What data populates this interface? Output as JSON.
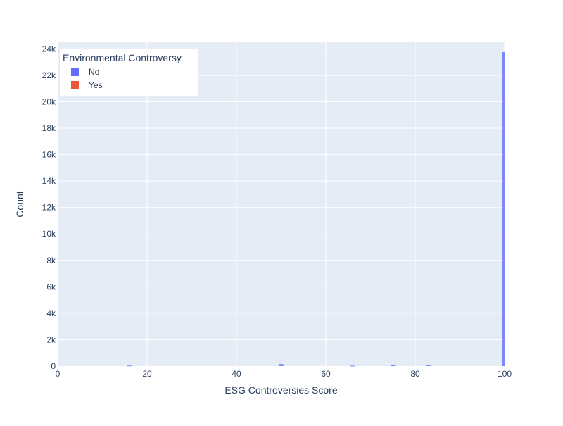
{
  "chart_data": {
    "type": "bar",
    "xlabel": "ESG Controversies Score",
    "ylabel": "Count",
    "xlim": [
      0,
      100
    ],
    "ylim": [
      0,
      24500
    ],
    "x_ticks": [
      {
        "value": 0,
        "label": "0"
      },
      {
        "value": 20,
        "label": "20"
      },
      {
        "value": 40,
        "label": "40"
      },
      {
        "value": 60,
        "label": "60"
      },
      {
        "value": 80,
        "label": "80"
      },
      {
        "value": 100,
        "label": "100"
      }
    ],
    "y_ticks": [
      {
        "value": 0,
        "label": "0"
      },
      {
        "value": 2000,
        "label": "2k"
      },
      {
        "value": 4000,
        "label": "4k"
      },
      {
        "value": 6000,
        "label": "6k"
      },
      {
        "value": 8000,
        "label": "8k"
      },
      {
        "value": 10000,
        "label": "10k"
      },
      {
        "value": 12000,
        "label": "12k"
      },
      {
        "value": 14000,
        "label": "14k"
      },
      {
        "value": 16000,
        "label": "16k"
      },
      {
        "value": 18000,
        "label": "18k"
      },
      {
        "value": 20000,
        "label": "20k"
      },
      {
        "value": 22000,
        "label": "22k"
      },
      {
        "value": 24000,
        "label": "24k"
      }
    ],
    "bin_width": 1,
    "grid": true,
    "legend": {
      "title": "Environmental Controversy",
      "placement": "top-left"
    },
    "series": [
      {
        "name": "No",
        "color": "#636efa",
        "bins": [
          {
            "x": 16,
            "count": 40
          },
          {
            "x": 50,
            "count": 150
          },
          {
            "x": 66,
            "count": 30
          },
          {
            "x": 75,
            "count": 110
          },
          {
            "x": 83,
            "count": 80
          },
          {
            "x": 100,
            "count": 23750
          }
        ]
      },
      {
        "name": "Yes",
        "color": "#ef553b",
        "bins": []
      }
    ]
  }
}
